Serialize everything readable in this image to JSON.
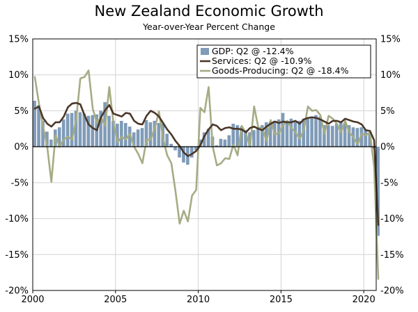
{
  "chart_data": {
    "type": "bar+line",
    "title": "New Zealand Economic Growth",
    "subtitle": "Year-over-Year Percent Change",
    "xlabel": "",
    "ylabel": "",
    "x_start": 2000.0,
    "x_step": 0.25,
    "xlim": [
      2000,
      2020.75
    ],
    "ylim": [
      -20,
      15
    ],
    "y_ticks": [
      15,
      10,
      5,
      0,
      -5,
      -10,
      -15,
      -20
    ],
    "y_tick_labels": [
      "15%",
      "10%",
      "5%",
      "0%",
      "-5%",
      "-10%",
      "-15%",
      "-20%"
    ],
    "y_tick_labels_right": [
      "15%",
      "10%",
      "5%",
      "0%",
      "-5%",
      "-10%",
      "-15%",
      "-20%"
    ],
    "x_tick_values": [
      2000,
      2005,
      2010,
      2015,
      2020
    ],
    "x_tick_labels": [
      "2000",
      "2005",
      "2010",
      "2015",
      "2020"
    ],
    "grid": true,
    "legend_position": "top-right",
    "series": [
      {
        "name": "GDP: Q2 @ -12.4%",
        "type": "bar",
        "color": "#7f9bb8",
        "values": [
          6.4,
          5.8,
          3.6,
          2.1,
          1.0,
          2.4,
          2.7,
          3.8,
          4.6,
          4.7,
          5.0,
          4.8,
          4.6,
          4.3,
          4.4,
          4.5,
          5.0,
          6.2,
          4.3,
          3.6,
          3.2,
          3.6,
          3.3,
          2.8,
          2.0,
          2.4,
          2.6,
          3.7,
          3.4,
          3.6,
          3.3,
          3.2,
          1.8,
          0.4,
          -0.5,
          -1.5,
          -2.2,
          -2.5,
          -1.5,
          -0.5,
          1.0,
          2.0,
          2.5,
          1.4,
          0.2,
          1.1,
          1.0,
          1.6,
          3.2,
          3.0,
          2.8,
          2.3,
          2.0,
          2.3,
          2.6,
          3.0,
          3.4,
          3.5,
          3.6,
          3.8,
          4.7,
          3.6,
          3.9,
          3.5,
          3.6,
          3.9,
          4.1,
          4.2,
          4.4,
          4.2,
          3.0,
          3.0,
          2.9,
          3.2,
          3.5,
          3.3,
          3.0,
          2.7,
          2.6,
          2.7,
          2.4,
          2.0,
          -0.3,
          -12.4
        ]
      },
      {
        "name": "Services: Q2 @ -10.9%",
        "type": "line",
        "color": "#4a3728",
        "values": [
          5.3,
          5.6,
          4.0,
          3.2,
          2.8,
          3.4,
          3.4,
          4.2,
          5.5,
          6.0,
          6.1,
          5.9,
          4.4,
          3.1,
          2.6,
          2.3,
          4.1,
          5.1,
          5.8,
          4.6,
          4.4,
          4.2,
          4.7,
          4.6,
          3.6,
          3.2,
          3.1,
          4.3,
          5.0,
          4.7,
          4.2,
          3.3,
          2.4,
          1.7,
          0.8,
          0.1,
          -0.8,
          -1.3,
          -1.0,
          -0.6,
          0.2,
          1.5,
          2.4,
          3.1,
          2.9,
          2.3,
          2.6,
          2.7,
          2.5,
          2.5,
          2.4,
          2.0,
          2.6,
          2.8,
          2.5,
          2.3,
          2.8,
          3.2,
          3.5,
          3.3,
          3.5,
          3.4,
          3.4,
          3.6,
          3.2,
          3.8,
          4.0,
          4.1,
          4.0,
          3.8,
          3.5,
          3.2,
          3.6,
          3.6,
          3.4,
          3.9,
          3.7,
          3.5,
          3.4,
          3.1,
          2.3,
          2.2,
          0.9,
          -10.9
        ]
      },
      {
        "name": "Goods-Producing: Q2 @ -18.4%",
        "type": "line",
        "color": "#a5ac84",
        "values": [
          9.7,
          6.0,
          2.8,
          0.0,
          -4.9,
          1.6,
          0.0,
          1.0,
          1.4,
          1.0,
          3.8,
          9.5,
          9.7,
          10.6,
          5.3,
          3.3,
          4.1,
          2.9,
          8.3,
          3.3,
          0.6,
          1.4,
          1.0,
          1.8,
          0.0,
          -1.0,
          -2.3,
          1.0,
          1.0,
          2.6,
          4.9,
          1.1,
          -1.2,
          -2.3,
          -6.2,
          -10.7,
          -8.9,
          -10.4,
          -6.8,
          -6.0,
          5.4,
          4.8,
          8.3,
          0.0,
          -2.6,
          -2.3,
          -1.6,
          -1.7,
          0.3,
          -1.2,
          2.9,
          1.9,
          0.0,
          5.6,
          2.7,
          2.5,
          0.8,
          3.7,
          1.7,
          1.9,
          3.0,
          3.6,
          2.6,
          2.0,
          1.1,
          2.3,
          5.6,
          5.0,
          5.1,
          4.4,
          1.8,
          4.3,
          3.9,
          3.2,
          2.0,
          3.6,
          2.0,
          1.3,
          0.3,
          1.8,
          1.6,
          2.0,
          -2.8,
          -18.4
        ]
      }
    ]
  }
}
